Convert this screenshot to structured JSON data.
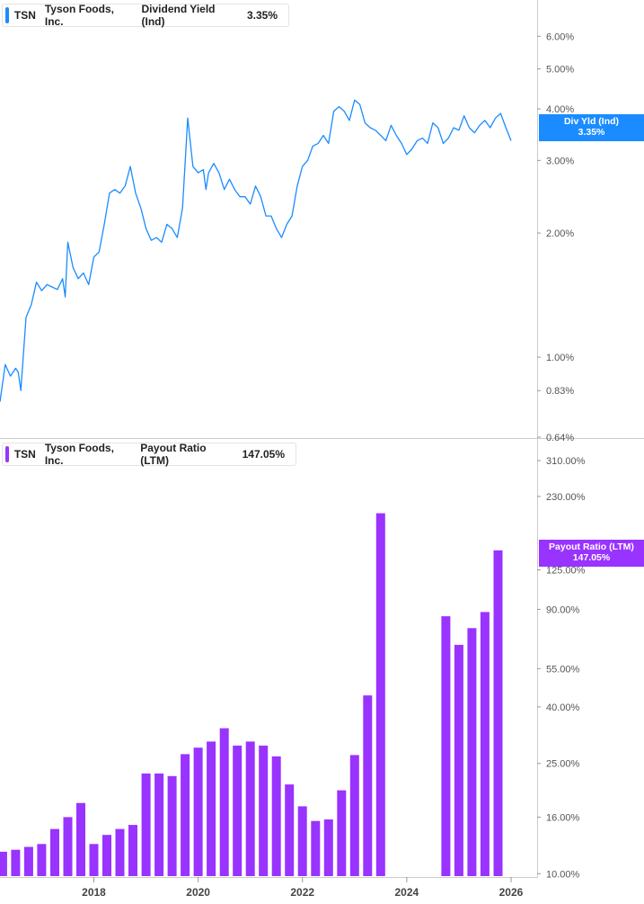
{
  "colors": {
    "yield": "#1a8cff",
    "payout": "#9933ff",
    "axis_text": "#555555",
    "grid": "#d0d0d0"
  },
  "top_panel": {
    "legend": {
      "ticker": "TSN",
      "company": "Tyson Foods, Inc.",
      "metric": "Dividend Yield (Ind)",
      "value": "3.35%"
    },
    "tag": {
      "label": "Div Yld (Ind)",
      "value": "3.35%"
    }
  },
  "bottom_panel": {
    "legend": {
      "ticker": "TSN",
      "company": "Tyson Foods, Inc.",
      "metric": "Payout Ratio (LTM)",
      "value": "147.05%"
    },
    "tag": {
      "label": "Payout Ratio (LTM)",
      "value": "147.05%"
    }
  },
  "chart_data": [
    {
      "type": "line",
      "scale": "log",
      "series": [
        {
          "name": "Dividend Yield (Ind)",
          "x": [
            2016.2,
            2016.3,
            2016.4,
            2016.5,
            2016.55,
            2016.6,
            2016.7,
            2016.8,
            2016.9,
            2017.0,
            2017.1,
            2017.2,
            2017.3,
            2017.4,
            2017.45,
            2017.5,
            2017.6,
            2017.7,
            2017.8,
            2017.9,
            2018.0,
            2018.1,
            2018.2,
            2018.3,
            2018.4,
            2018.5,
            2018.6,
            2018.7,
            2018.8,
            2018.9,
            2019.0,
            2019.1,
            2019.2,
            2019.3,
            2019.4,
            2019.5,
            2019.6,
            2019.7,
            2019.8,
            2019.9,
            2020.0,
            2020.1,
            2020.15,
            2020.2,
            2020.3,
            2020.4,
            2020.5,
            2020.6,
            2020.7,
            2020.8,
            2020.9,
            2021.0,
            2021.1,
            2021.2,
            2021.3,
            2021.4,
            2021.5,
            2021.6,
            2021.7,
            2021.8,
            2021.9,
            2022.0,
            2022.1,
            2022.2,
            2022.3,
            2022.4,
            2022.5,
            2022.6,
            2022.7,
            2022.8,
            2022.9,
            2023.0,
            2023.1,
            2023.2,
            2023.3,
            2023.4,
            2023.5,
            2023.6,
            2023.7,
            2023.8,
            2023.9,
            2024.0,
            2024.1,
            2024.2,
            2024.3,
            2024.4,
            2024.5,
            2024.6,
            2024.7,
            2024.8,
            2024.9,
            2025.0,
            2025.1,
            2025.2,
            2025.3,
            2025.4,
            2025.5,
            2025.6,
            2025.7,
            2025.8,
            2025.9,
            2026.0
          ],
          "values": [
            0.78,
            0.96,
            0.9,
            0.94,
            0.92,
            0.83,
            1.25,
            1.34,
            1.52,
            1.45,
            1.5,
            1.48,
            1.46,
            1.55,
            1.4,
            1.9,
            1.65,
            1.55,
            1.6,
            1.5,
            1.75,
            1.8,
            2.1,
            2.5,
            2.55,
            2.5,
            2.6,
            2.9,
            2.5,
            2.3,
            2.05,
            1.92,
            1.95,
            1.9,
            2.1,
            2.05,
            1.95,
            2.3,
            3.8,
            2.9,
            2.8,
            2.85,
            2.55,
            2.8,
            2.95,
            2.8,
            2.55,
            2.7,
            2.55,
            2.45,
            2.45,
            2.35,
            2.6,
            2.45,
            2.2,
            2.2,
            2.05,
            1.95,
            2.1,
            2.2,
            2.6,
            2.9,
            3.0,
            3.25,
            3.3,
            3.45,
            3.3,
            3.95,
            4.05,
            3.95,
            3.75,
            4.2,
            4.1,
            3.7,
            3.6,
            3.55,
            3.45,
            3.35,
            3.65,
            3.45,
            3.3,
            3.1,
            3.2,
            3.35,
            3.4,
            3.3,
            3.7,
            3.6,
            3.3,
            3.4,
            3.6,
            3.55,
            3.85,
            3.6,
            3.5,
            3.65,
            3.75,
            3.6,
            3.8,
            3.9,
            3.6,
            3.35
          ]
        }
      ],
      "y_ticks": [
        "0.64%",
        "0.83%",
        "1.00%",
        "2.00%",
        "3.00%",
        "4.00%",
        "5.00%",
        "6.00%"
      ],
      "y_tick_values": [
        0.64,
        0.83,
        1.0,
        2.0,
        3.0,
        4.0,
        5.0,
        6.0
      ],
      "ylim": [
        0.64,
        7.2
      ]
    },
    {
      "type": "bar",
      "scale": "log",
      "series": [
        {
          "name": "Payout Ratio (LTM)",
          "x": [
            2016.25,
            2016.5,
            2016.75,
            2017.0,
            2017.25,
            2017.5,
            2017.75,
            2018.0,
            2018.25,
            2018.5,
            2018.75,
            2019.0,
            2019.25,
            2019.5,
            2019.75,
            2020.0,
            2020.25,
            2020.5,
            2020.75,
            2021.0,
            2021.25,
            2021.5,
            2021.75,
            2022.0,
            2022.25,
            2022.5,
            2022.75,
            2023.0,
            2023.25,
            2023.5,
            2024.75,
            2025.0,
            2025.25,
            2025.5,
            2025.75
          ],
          "values": [
            12,
            12.2,
            12.5,
            12.8,
            14.5,
            16,
            18,
            12.8,
            13.8,
            14.5,
            15,
            23,
            23,
            22.5,
            27,
            28.5,
            30,
            33.5,
            29,
            30,
            29,
            26.5,
            21,
            17.5,
            15.5,
            15.7,
            20,
            26.8,
            44,
            200,
            85,
            67,
            77,
            88,
            147.05
          ]
        }
      ],
      "y_ticks": [
        "10.00%",
        "16.00%",
        "25.00%",
        "40.00%",
        "55.00%",
        "90.00%",
        "125.00%",
        "230.00%",
        "310.00%"
      ],
      "y_tick_values": [
        10,
        16,
        25,
        40,
        55,
        90,
        125,
        230,
        310
      ],
      "ylim": [
        9.8,
        360
      ]
    }
  ],
  "x_axis": {
    "ticks": [
      "2018",
      "2020",
      "2022",
      "2024",
      "2026"
    ],
    "tick_values": [
      2018,
      2020,
      2022,
      2024,
      2026
    ],
    "range": [
      2016.2,
      2026.5
    ]
  }
}
